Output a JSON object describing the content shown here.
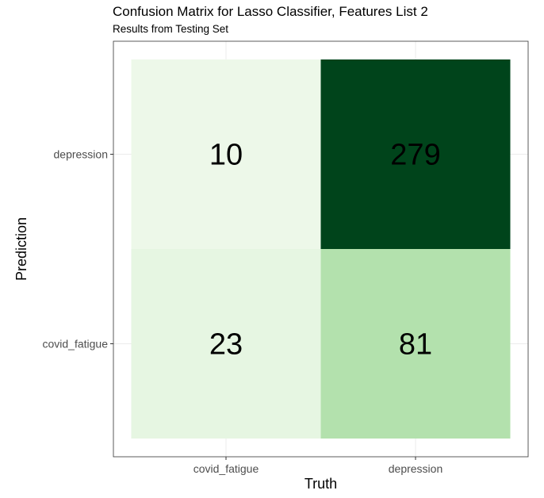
{
  "chart_data": {
    "type": "heatmap",
    "title": "Confusion Matrix for Lasso Classifier, Features List 2",
    "subtitle": "Results from Testing Set",
    "xlabel": "Truth",
    "ylabel": "Prediction",
    "x_categories": [
      "covid_fatigue",
      "depression"
    ],
    "y_categories": [
      "covid_fatigue",
      "depression"
    ],
    "cells": [
      {
        "truth": "covid_fatigue",
        "prediction": "depression",
        "value": 10
      },
      {
        "truth": "depression",
        "prediction": "depression",
        "value": 279
      },
      {
        "truth": "covid_fatigue",
        "prediction": "covid_fatigue",
        "value": 23
      },
      {
        "truth": "depression",
        "prediction": "covid_fatigue",
        "value": 81
      }
    ],
    "color_scale": {
      "low": "#f7fcf5",
      "high": "#00441b"
    },
    "grid": true,
    "legend": "none"
  }
}
